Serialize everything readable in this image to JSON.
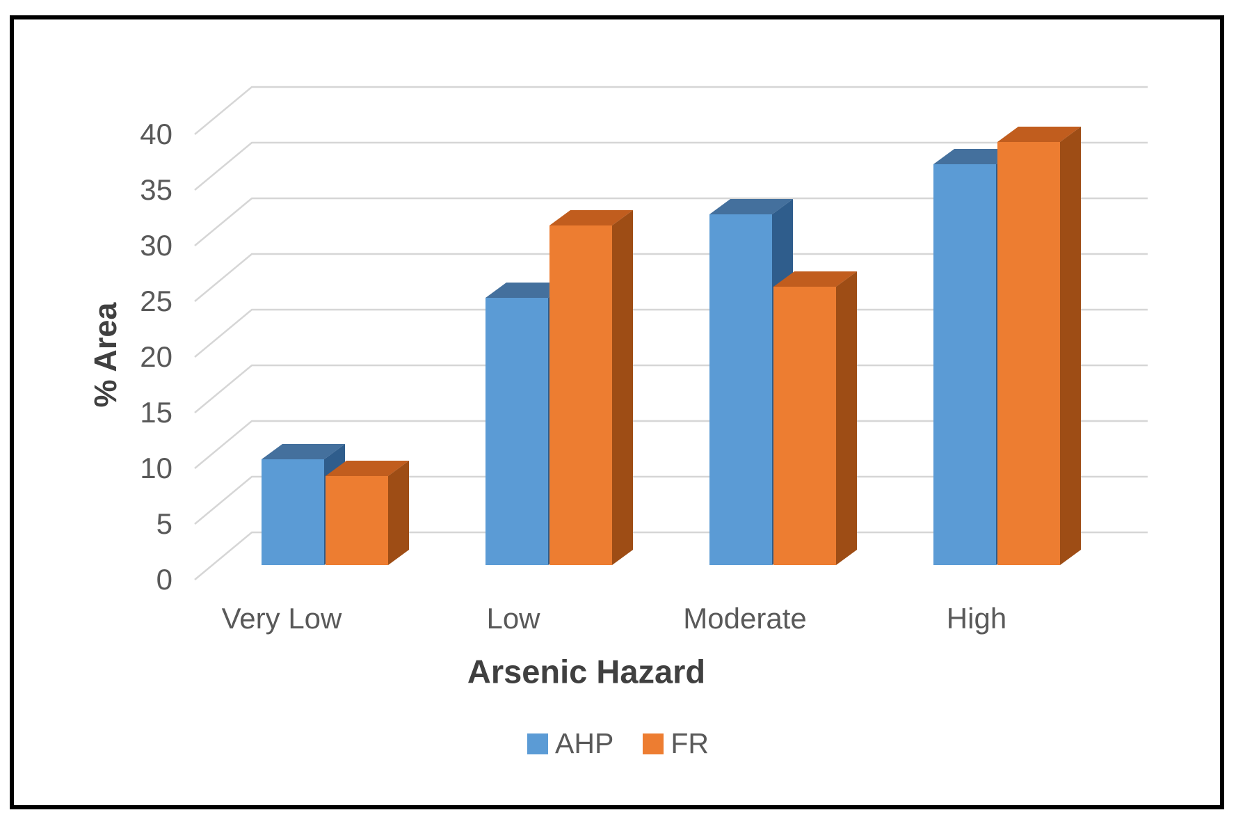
{
  "figure": {
    "background": "#FFFFFF",
    "border_color": "#000000"
  },
  "chart_data": {
    "type": "bar",
    "subtype": "3d-clustered-column",
    "title": "",
    "categories": [
      "Very Low",
      "Low",
      "Moderate",
      "High"
    ],
    "series": [
      {
        "name": "AHP",
        "values": [
          9.5,
          24,
          31.5,
          36
        ],
        "color": "#5B9BD5",
        "top_color": "#44709D",
        "side_color": "#2F5D8C"
      },
      {
        "name": "FR",
        "values": [
          8,
          30.5,
          25,
          38
        ],
        "color": "#ED7D31",
        "top_color": "#C15D1E",
        "side_color": "#9E4D15"
      }
    ],
    "xlabel": "Arsenic Hazard",
    "ylabel": "% Area",
    "yticks": [
      0,
      5,
      10,
      15,
      20,
      25,
      30,
      35,
      40
    ],
    "ylim": [
      0,
      40
    ],
    "grid": true,
    "gridline_color": "#D6D6D6",
    "tick_label_color": "#595959",
    "axis_title_color": "#404040",
    "legend_position": "bottom"
  }
}
